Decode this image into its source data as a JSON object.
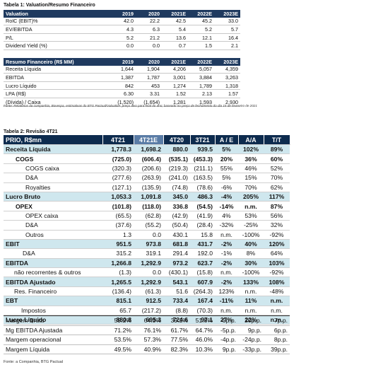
{
  "table1": {
    "title": "Tabela 1: Valuation/Resumo Financeiro",
    "valuation": {
      "header": [
        "Valuation",
        "2019",
        "2020",
        "2021E",
        "2022E",
        "2023E"
      ],
      "rows": [
        [
          "RoIC (EBIT)%",
          "42.0",
          "22.2",
          "42.5",
          "45.2",
          "33.0"
        ],
        [
          "EV/EBITDA",
          "4.3",
          "6.3",
          "5.4",
          "5.2",
          "5.7"
        ],
        [
          "P/L",
          "5.2",
          "21.2",
          "13.6",
          "12.1",
          "16.4"
        ],
        [
          "Dividend Yield (%)",
          "0.0",
          "0.0",
          "0.7",
          "1.5",
          "2.1"
        ]
      ]
    },
    "financial": {
      "header": [
        "Resumo Financeiro (R$ MM)",
        "2019",
        "2020",
        "2021E",
        "2022E",
        "2023E"
      ],
      "rows": [
        [
          "Receita Líquida",
          "1,644",
          "1,904",
          "4,206",
          "5,057",
          "4,359"
        ],
        [
          "EBITDA",
          "1,387",
          "1,787",
          "3,001",
          "3,884",
          "3,263"
        ],
        [
          "Lucro Líquido",
          "842",
          "453",
          "1,274",
          "1,789",
          "1,318"
        ],
        [
          "LPA (R$)",
          "6.30",
          "3.31",
          "1.52",
          "2.13",
          "1.57"
        ],
        [
          "(Dívida) / Caixa",
          "(1,520)",
          "(1,654)",
          "1,281",
          "1,593",
          "2,930"
        ]
      ]
    },
    "source": "Fonte: Relatórios da companhia, Bovespa, estimativas do BTG Pactual/Valuation: preço alvo para final do ano; baseado no preço de fechamento do dia 15 de fevereiro de 2021"
  },
  "table2": {
    "title": "Tabela 2: Revisão 4T21",
    "header": [
      "PRIO, R$mn",
      "4T21",
      "4T21E",
      "4T20",
      "3T21",
      "A / E",
      "A/A",
      "T/T"
    ],
    "rows": [
      [
        "Receita Líquida",
        "1,778.3",
        "1,698.2",
        "880.0",
        "939.5",
        "5%",
        "102%",
        "89%"
      ],
      [
        "COGS",
        "(725.0)",
        "(606.4)",
        "(535.1)",
        "(453.3)",
        "20%",
        "36%",
        "60%"
      ],
      [
        "COGS caixa",
        "(320.3)",
        "(206.6)",
        "(219.3)",
        "(211.1)",
        "55%",
        "46%",
        "52%"
      ],
      [
        "D&A",
        "(277.6)",
        "(263.9)",
        "(241.0)",
        "(163.5)",
        "5%",
        "15%",
        "70%"
      ],
      [
        "Royalties",
        "(127.1)",
        "(135.9)",
        "(74.8)",
        "(78.6)",
        "-6%",
        "70%",
        "62%"
      ],
      [
        "Lucro Bruto",
        "1,053.3",
        "1,091.8",
        "345.0",
        "486.3",
        "-4%",
        "205%",
        "117%"
      ],
      [
        "OPEX",
        "(101.8)",
        "(118.0)",
        "336.8",
        "(54.5)",
        "-14%",
        "n.m.",
        "87%"
      ],
      [
        "OPEX caixa",
        "(65.5)",
        "(62.8)",
        "(42.9)",
        "(41.9)",
        "4%",
        "53%",
        "56%"
      ],
      [
        "D&A",
        "(37.6)",
        "(55.2)",
        "(50.4)",
        "(28.4)",
        "-32%",
        "-25%",
        "32%"
      ],
      [
        "Outros",
        "1.3",
        "0.0",
        "430.1",
        "15.8",
        "n.m.",
        "-100%",
        "-92%"
      ],
      [
        "EBIT",
        "951.5",
        "973.8",
        "681.8",
        "431.7",
        "-2%",
        "40%",
        "120%"
      ],
      [
        "D&A",
        "315.2",
        "319.1",
        "291.4",
        "192.0",
        "-1%",
        "8%",
        "64%"
      ],
      [
        "EBITDA",
        "1,266.8",
        "1,292.9",
        "973.2",
        "623.7",
        "-2%",
        "30%",
        "103%"
      ],
      [
        "não recorrentes & outros",
        "(1.3)",
        "0.0",
        "(430.1)",
        "(15.8)",
        "n.m.",
        "-100%",
        "-92%"
      ],
      [
        "EBITDA Ajustado",
        "1,265.5",
        "1,292.9",
        "543.1",
        "607.9",
        "-2%",
        "133%",
        "108%"
      ],
      [
        "Res. Financeiro",
        "(136.4)",
        "(61.3)",
        "51.6",
        "(264.3)",
        "123%",
        "n.m.",
        "-48%"
      ],
      [
        "EBT",
        "815.1",
        "912.5",
        "733.4",
        "167.4",
        "-11%",
        "11%",
        "n.m."
      ],
      [
        "Impostos",
        "65.7",
        "(217.2)",
        "(8.8)",
        "(70.3)",
        "n.m.",
        "n.m.",
        "n.m."
      ],
      [
        "Lucro Líquido",
        "880.8",
        "695.3",
        "724.6",
        "97.1",
        "27%",
        "22%",
        "n.m."
      ]
    ],
    "margins": [
      [
        "Margem Bruta",
        "59.2%",
        "64.3%",
        "39.2%",
        "51.8%",
        "-5p.p.",
        "20p.p.",
        "7p.p."
      ],
      [
        "Mg EBITDA Ajustada",
        "71.2%",
        "76.1%",
        "61.7%",
        "64.7%",
        "-5p.p.",
        "9p.p.",
        "6p.p."
      ],
      [
        "Margem operacional",
        "53.5%",
        "57.3%",
        "77.5%",
        "46.0%",
        "-4p.p.",
        "-24p.p.",
        "8p.p."
      ],
      [
        "Margem Líquida",
        "49.5%",
        "40.9%",
        "82.3%",
        "10.3%",
        "9p.p.",
        "-33p.p.",
        "39p.p."
      ]
    ],
    "source": "Fonte: a Companhia, BTG Pactual"
  }
}
